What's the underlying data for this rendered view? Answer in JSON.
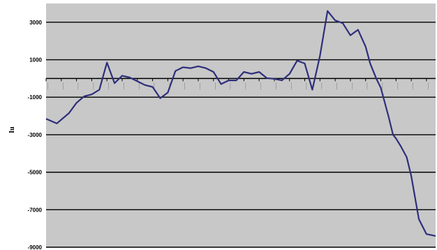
{
  "chart_data": {
    "type": "line",
    "title": "",
    "xlabel": "",
    "ylabel": "Iu",
    "ylim": [
      -9000,
      4000
    ],
    "yticks": [
      3000,
      1000,
      -1000,
      -3000,
      -5000,
      -7000,
      -9000
    ],
    "ytick_labels": [
      "3000",
      "1000",
      "-1000",
      "-3000",
      "-5000",
      "-7000",
      "-9000"
    ],
    "x_axis_at": 0,
    "grid": "horizontal major gridlines",
    "legend": "none",
    "colors": {
      "plot_bg": "#c8c8c8",
      "line": "#2e2e7c",
      "grid": "#000000"
    },
    "x": [
      0,
      0.7,
      1.5,
      2,
      2.5,
      3,
      3.5,
      4,
      4.5,
      5,
      5.5,
      6,
      6.5,
      7,
      7.5,
      8,
      8.5,
      9,
      9.5,
      10,
      10.5,
      11,
      11.5,
      12,
      12.5,
      13,
      13.5,
      14,
      14.5,
      15,
      15.5,
      16,
      16.5,
      17,
      17.5,
      18,
      18.5,
      19,
      19.5,
      20,
      20.5,
      21,
      21.3,
      21.7,
      22,
      22.5,
      22.8,
      23,
      23.3,
      23.7,
      24,
      24.5,
      25,
      25.6
    ],
    "series": [
      {
        "values": [
          -2150,
          -2400,
          -1850,
          -1300,
          -950,
          -850,
          -600,
          850,
          -250,
          150,
          50,
          -150,
          -350,
          -450,
          -1050,
          -750,
          400,
          600,
          550,
          650,
          550,
          350,
          -300,
          -100,
          -100,
          350,
          250,
          350,
          20,
          -20,
          -100,
          250,
          950,
          800,
          -600,
          1200,
          3600,
          3100,
          2950,
          2300,
          2600,
          1700,
          800,
          0,
          -500,
          -2000,
          -3000,
          -3200,
          -3600,
          -4200,
          -5200,
          -7500,
          -8300,
          -8400
        ]
      }
    ]
  }
}
